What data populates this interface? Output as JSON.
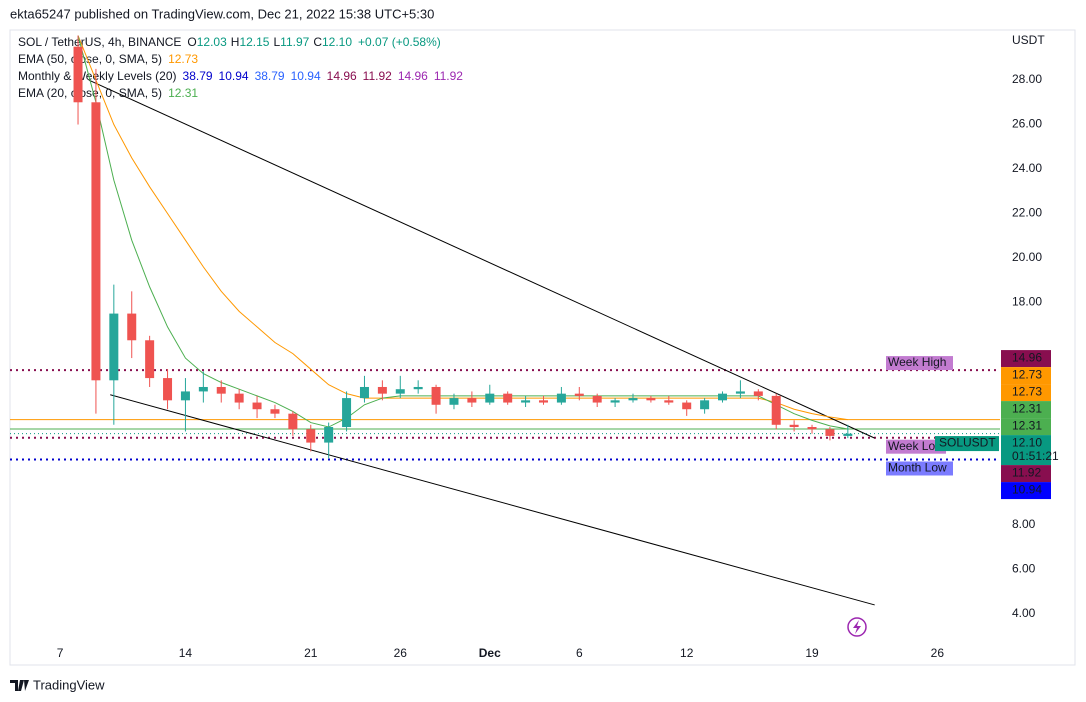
{
  "header": {
    "publisher": "ekta65247 published on TradingView.com, Dec 21, 2022 15:38 UTC+5:30"
  },
  "footer": {
    "brand": "TradingView"
  },
  "legend": [
    {
      "name": "SOL / TetherUS, 4h, BINANCE",
      "values": [
        {
          "prefix": "O",
          "text": "12.03",
          "color": "#089981"
        },
        {
          "prefix": "H",
          "text": "12.15",
          "color": "#089981"
        },
        {
          "prefix": "L",
          "text": "11.97",
          "color": "#089981"
        },
        {
          "prefix": "C",
          "text": "12.10",
          "color": "#089981"
        },
        {
          "text": "+0.07 (+0.58%)",
          "color": "#089981"
        }
      ]
    },
    {
      "name": "EMA (50, close, 0, SMA, 5)",
      "values": [
        {
          "text": "12.73",
          "color": "#ff9800"
        }
      ]
    },
    {
      "name": "Monthly & Weekly Levels (20)",
      "values": [
        {
          "text": "38.79",
          "color": "#0000cc"
        },
        {
          "text": "10.94",
          "color": "#0000cc"
        },
        {
          "text": "38.79",
          "color": "#2962ff"
        },
        {
          "text": "10.94",
          "color": "#2962ff"
        },
        {
          "text": "14.96",
          "color": "#880e4f"
        },
        {
          "text": "11.92",
          "color": "#880e4f"
        },
        {
          "text": "14.96",
          "color": "#9c27b0"
        },
        {
          "text": "11.92",
          "color": "#9c27b0"
        }
      ]
    },
    {
      "name": "EMA (20, close, 0, SMA, 5)",
      "values": [
        {
          "text": "12.31",
          "color": "#4caf50"
        }
      ]
    }
  ],
  "chart_data": {
    "type": "candlestick",
    "currency": "USDT",
    "up_color": "#26a69a",
    "down_color": "#ef5350",
    "xlim": [
      -2.8,
      52.5
    ],
    "ylim": [
      1.7,
      30.25
    ],
    "grid": false,
    "xticks": [
      {
        "value": 0,
        "label": "7"
      },
      {
        "value": 7,
        "label": "14"
      },
      {
        "value": 14,
        "label": "21"
      },
      {
        "value": 19,
        "label": "26"
      },
      {
        "value": 24,
        "label": "Dec"
      },
      {
        "value": 29,
        "label": "6"
      },
      {
        "value": 35,
        "label": "12"
      },
      {
        "value": 42,
        "label": "19"
      },
      {
        "value": 49,
        "label": "26"
      }
    ],
    "yticks": [
      {
        "value": 4,
        "label": "4.00"
      },
      {
        "value": 6,
        "label": "6.00"
      },
      {
        "value": 8,
        "label": "8.00"
      },
      {
        "value": 18,
        "label": "18.00"
      },
      {
        "value": 20,
        "label": "20.00"
      },
      {
        "value": 22,
        "label": "22.00"
      },
      {
        "value": 24,
        "label": "24.00"
      },
      {
        "value": 26,
        "label": "26.00"
      },
      {
        "value": 28,
        "label": "28.00"
      }
    ],
    "x": [
      1,
      2,
      3,
      4,
      5,
      6,
      7,
      8,
      9,
      10,
      11,
      12,
      13,
      14,
      15,
      16,
      17,
      18,
      19,
      20,
      21,
      22,
      23,
      24,
      25,
      26,
      27,
      28,
      29,
      30,
      31,
      32,
      33,
      34,
      35,
      36,
      37,
      38,
      39,
      40,
      41,
      42,
      43,
      44
    ],
    "open": [
      29.5,
      27.0,
      14.5,
      17.5,
      16.3,
      14.6,
      13.6,
      14.0,
      14.2,
      13.9,
      13.5,
      13.2,
      13.0,
      12.3,
      11.7,
      12.4,
      13.7,
      14.2,
      13.9,
      14.1,
      14.2,
      13.4,
      13.7,
      13.5,
      13.9,
      13.5,
      13.6,
      13.5,
      13.9,
      13.8,
      13.5,
      13.6,
      13.7,
      13.6,
      13.5,
      13.2,
      13.6,
      13.9,
      14.0,
      13.8,
      12.5,
      12.4,
      12.3,
      12.0
    ],
    "high": [
      30.0,
      28.5,
      18.8,
      18.5,
      16.5,
      15.0,
      14.6,
      14.9,
      14.5,
      14.1,
      13.8,
      13.4,
      13.1,
      12.5,
      12.6,
      14.0,
      14.7,
      14.5,
      14.7,
      14.5,
      14.3,
      13.9,
      14.0,
      14.3,
      14.0,
      13.8,
      13.8,
      14.2,
      14.2,
      13.9,
      13.7,
      13.9,
      13.8,
      13.8,
      13.6,
      13.7,
      14.0,
      14.5,
      14.1,
      13.9,
      12.7,
      12.5,
      12.4,
      12.5
    ],
    "low": [
      26.0,
      13.0,
      12.5,
      15.5,
      14.2,
      13.2,
      12.2,
      13.5,
      13.5,
      13.2,
      12.8,
      12.8,
      12.0,
      11.3,
      11.0,
      12.2,
      13.5,
      13.6,
      13.7,
      13.9,
      13.0,
      13.2,
      13.3,
      13.4,
      13.4,
      13.3,
      13.4,
      13.4,
      13.6,
      13.3,
      13.3,
      13.5,
      13.5,
      13.4,
      12.9,
      13.0,
      13.5,
      13.7,
      13.6,
      12.3,
      12.2,
      12.1,
      11.8,
      11.9
    ],
    "close": [
      27.0,
      14.5,
      17.5,
      16.3,
      14.6,
      13.6,
      14.0,
      14.2,
      13.9,
      13.5,
      13.2,
      13.0,
      12.3,
      11.7,
      12.4,
      13.7,
      14.2,
      13.9,
      14.1,
      14.2,
      13.4,
      13.7,
      13.5,
      13.9,
      13.5,
      13.6,
      13.5,
      13.9,
      13.8,
      13.5,
      13.6,
      13.7,
      13.6,
      13.5,
      13.2,
      13.6,
      13.9,
      14.0,
      13.8,
      12.5,
      12.4,
      12.3,
      12.0,
      12.1
    ],
    "overlays": [
      {
        "color": "#ff9800",
        "values": [
          30.0,
          28.0,
          26.0,
          24.5,
          23.2,
          22.0,
          20.8,
          19.6,
          18.5,
          17.6,
          16.9,
          16.2,
          15.7,
          15.0,
          14.3,
          13.9,
          13.7,
          13.7,
          13.7,
          13.7,
          13.7,
          13.7,
          13.7,
          13.7,
          13.7,
          13.7,
          13.7,
          13.7,
          13.7,
          13.7,
          13.7,
          13.7,
          13.7,
          13.7,
          13.7,
          13.7,
          13.7,
          13.7,
          13.7,
          13.5,
          13.2,
          13.0,
          12.85,
          12.73
        ]
      },
      {
        "color": "#4caf50",
        "values": [
          30.0,
          27.0,
          23.5,
          20.8,
          18.7,
          16.9,
          15.5,
          14.8,
          14.4,
          14.1,
          13.8,
          13.5,
          13.1,
          12.6,
          12.4,
          12.8,
          13.4,
          13.7,
          13.8,
          13.8,
          13.8,
          13.8,
          13.8,
          13.8,
          13.8,
          13.8,
          13.8,
          13.8,
          13.8,
          13.8,
          13.8,
          13.8,
          13.8,
          13.8,
          13.8,
          13.8,
          13.8,
          13.8,
          13.8,
          13.4,
          13.0,
          12.7,
          12.45,
          12.31
        ]
      }
    ],
    "trendlines": [
      {
        "color": "#000000",
        "x": [
          1.6,
          45.5
        ],
        "y": [
          28.0,
          11.9
        ]
      },
      {
        "color": "#000000",
        "x": [
          2.8,
          45.5
        ],
        "y": [
          13.85,
          4.4
        ]
      }
    ],
    "levels": [
      {
        "label": "Week High",
        "value": 14.96,
        "color": "#880e4f",
        "tag": "#c27bd0"
      },
      {
        "label": "Week Low",
        "value": 11.92,
        "color": "#880e4f",
        "tag": "#c27bd0"
      },
      {
        "label": "Month Low",
        "value": 10.94,
        "color": "#0000cc",
        "tag": "#7b7bff"
      }
    ],
    "price_labels": [
      {
        "value": 14.96,
        "label": "14.96",
        "color": "#880e4f"
      },
      {
        "value": 12.73,
        "label": "12.73",
        "color": "#ff9800",
        "line": true
      },
      {
        "value": 12.73,
        "label": "12.73",
        "color": "#ff9800"
      },
      {
        "value": 12.31,
        "label": "12.31",
        "color": "#4caf50",
        "line": true
      },
      {
        "value": 12.31,
        "label": "12.31",
        "color": "#4caf50"
      },
      {
        "value": 12.1,
        "label": "12.10",
        "color": "#089981",
        "name": "SOLUSDT",
        "countdown": "01:51:21",
        "line": true
      },
      {
        "value": 11.92,
        "label": "11.92",
        "color": "#880e4f"
      },
      {
        "value": 10.94,
        "label": "10.94",
        "color": "#0000ff"
      }
    ]
  }
}
